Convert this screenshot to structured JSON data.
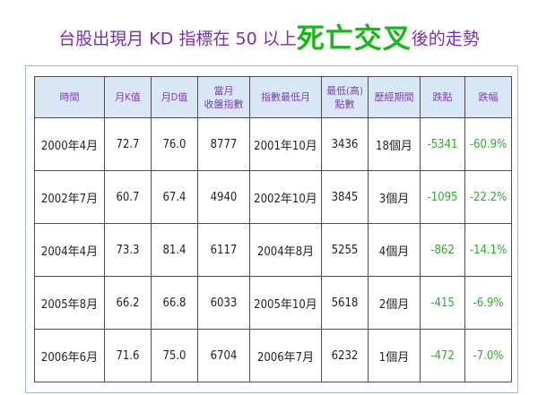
{
  "title": {
    "prefix": "台股出現月 KD 指標在 50 以上",
    "emphasis": "死亡交叉",
    "suffix": "後的走勢"
  },
  "colors": {
    "title_text": "#7b2fa8",
    "title_emphasis": "#17b817",
    "header_bg": "#d8e6f5",
    "header_text": "#7d3fb0",
    "change_text": "#2eac2e",
    "frame_border": "#9db8d6"
  },
  "table": {
    "headers": [
      {
        "line1": "時間",
        "line2": ""
      },
      {
        "line1": "月K值",
        "line2": ""
      },
      {
        "line1": "月D值",
        "line2": ""
      },
      {
        "line1": "當月",
        "line2": "收盤指數"
      },
      {
        "line1": "指數最低月",
        "line2": ""
      },
      {
        "line1": "最低(高)",
        "line2": "點數"
      },
      {
        "line1": "歷經期間",
        "line2": ""
      },
      {
        "line1": "跌點",
        "line2": ""
      },
      {
        "line1": "跌幅",
        "line2": ""
      }
    ],
    "rows": [
      [
        "2000年4月",
        "72.7",
        "76.0",
        "8777",
        "2001年10月",
        "3436",
        "18個月",
        "-5341",
        "-60.9%"
      ],
      [
        "2002年7月",
        "60.7",
        "67.4",
        "4940",
        "2002年10月",
        "3845",
        "3個月",
        "-1095",
        "-22.2%"
      ],
      [
        "2004年4月",
        "73.3",
        "81.4",
        "6117",
        "2004年8月",
        "5255",
        "4個月",
        "-862",
        "-14.1%"
      ],
      [
        "2005年8月",
        "66.2",
        "66.8",
        "6033",
        "2005年10月",
        "5618",
        "2個月",
        "-415",
        "-6.9%"
      ],
      [
        "2006年6月",
        "71.6",
        "75.0",
        "6704",
        "2006年7月",
        "6232",
        "1個月",
        "-472",
        "-7.0%"
      ]
    ]
  }
}
